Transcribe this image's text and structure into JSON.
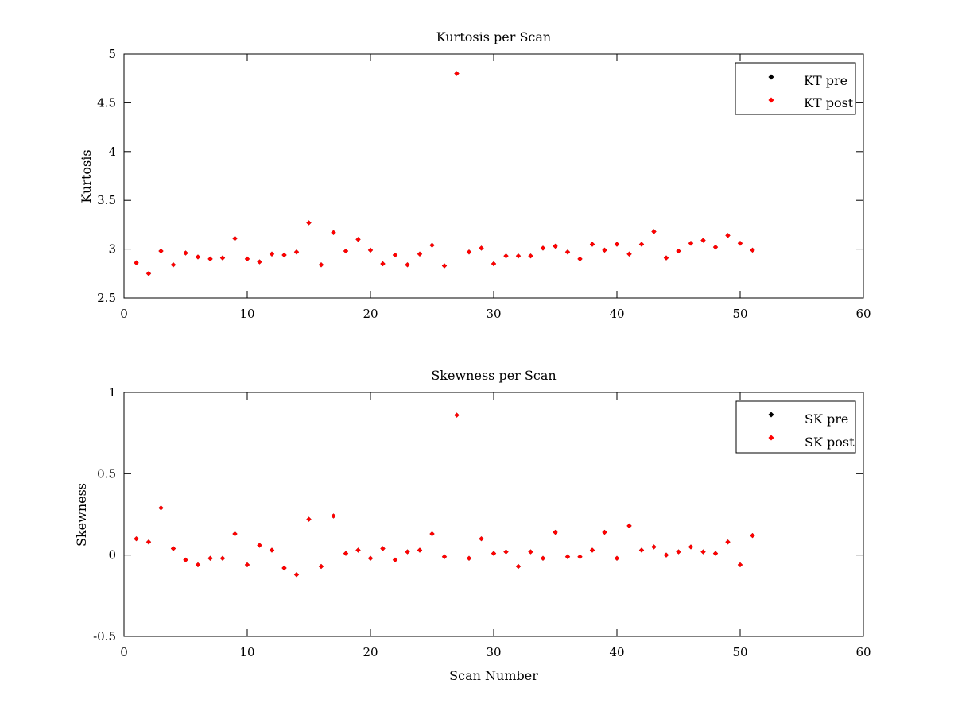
{
  "chart_data": [
    {
      "type": "scatter",
      "title": "Kurtosis per Scan",
      "xlabel": "",
      "ylabel": "Kurtosis",
      "xlim": [
        0,
        60
      ],
      "ylim": [
        2.5,
        5
      ],
      "xticks": [
        0,
        10,
        20,
        30,
        40,
        50,
        60
      ],
      "xtick_labels": [
        "0",
        "10",
        "20",
        "30",
        "40",
        "50",
        "60"
      ],
      "yticks": [
        2.5,
        3,
        3.5,
        4,
        4.5,
        5
      ],
      "ytick_labels": [
        "2.5",
        "3",
        "3.5",
        "4",
        "4.5",
        "5"
      ],
      "grid": false,
      "legend_position": "top-right",
      "series": [
        {
          "name": "KT pre",
          "color": "#000000",
          "x": [
            1,
            2,
            3,
            4,
            5,
            6,
            7,
            8,
            9,
            10,
            11,
            12,
            13,
            14,
            15,
            16,
            17,
            18,
            19,
            20,
            21,
            22,
            23,
            24,
            25,
            26,
            27,
            28,
            29,
            30,
            31,
            32,
            33,
            34,
            35,
            36,
            37,
            38,
            39,
            40,
            41,
            42,
            43,
            44,
            45,
            46,
            47,
            48,
            49,
            50,
            51
          ],
          "y": [
            2.86,
            2.75,
            2.98,
            2.84,
            2.96,
            2.92,
            2.9,
            2.91,
            3.11,
            2.9,
            2.87,
            2.95,
            2.94,
            2.97,
            3.27,
            2.84,
            3.17,
            2.98,
            3.1,
            2.99,
            2.85,
            2.94,
            2.84,
            2.95,
            3.04,
            2.83,
            4.8,
            2.97,
            3.01,
            2.85,
            2.93,
            2.93,
            2.93,
            3.01,
            3.03,
            2.97,
            2.9,
            3.05,
            2.99,
            3.05,
            2.95,
            3.05,
            3.18,
            2.91,
            2.98,
            3.06,
            3.09,
            3.02,
            3.14,
            3.06,
            2.99
          ]
        },
        {
          "name": "KT post",
          "color": "#ff0000",
          "x": [
            1,
            2,
            3,
            4,
            5,
            6,
            7,
            8,
            9,
            10,
            11,
            12,
            13,
            14,
            15,
            16,
            17,
            18,
            19,
            20,
            21,
            22,
            23,
            24,
            25,
            26,
            27,
            28,
            29,
            30,
            31,
            32,
            33,
            34,
            35,
            36,
            37,
            38,
            39,
            40,
            41,
            42,
            43,
            44,
            45,
            46,
            47,
            48,
            49,
            50,
            51
          ],
          "y": [
            2.86,
            2.75,
            2.98,
            2.84,
            2.96,
            2.92,
            2.9,
            2.91,
            3.11,
            2.9,
            2.87,
            2.95,
            2.94,
            2.97,
            3.27,
            2.84,
            3.17,
            2.98,
            3.1,
            2.99,
            2.85,
            2.94,
            2.84,
            2.95,
            3.04,
            2.83,
            4.8,
            2.97,
            3.01,
            2.85,
            2.93,
            2.93,
            2.93,
            3.01,
            3.03,
            2.97,
            2.9,
            3.05,
            2.99,
            3.05,
            2.95,
            3.05,
            3.18,
            2.91,
            2.98,
            3.06,
            3.09,
            3.02,
            3.14,
            3.06,
            2.99
          ]
        }
      ]
    },
    {
      "type": "scatter",
      "title": "Skewness per Scan",
      "xlabel": "Scan Number",
      "ylabel": "Skewness",
      "xlim": [
        0,
        60
      ],
      "ylim": [
        -0.5,
        1
      ],
      "xticks": [
        0,
        10,
        20,
        30,
        40,
        50,
        60
      ],
      "xtick_labels": [
        "0",
        "10",
        "20",
        "30",
        "40",
        "50",
        "60"
      ],
      "yticks": [
        -0.5,
        0,
        0.5,
        1
      ],
      "ytick_labels": [
        "-0.5",
        "0",
        "0.5",
        "1"
      ],
      "grid": false,
      "legend_position": "top-right",
      "series": [
        {
          "name": "SK pre",
          "color": "#000000",
          "x": [
            1,
            2,
            3,
            4,
            5,
            6,
            7,
            8,
            9,
            10,
            11,
            12,
            13,
            14,
            15,
            16,
            17,
            18,
            19,
            20,
            21,
            22,
            23,
            24,
            25,
            26,
            27,
            28,
            29,
            30,
            31,
            32,
            33,
            34,
            35,
            36,
            37,
            38,
            39,
            40,
            41,
            42,
            43,
            44,
            45,
            46,
            47,
            48,
            49,
            50,
            51
          ],
          "y": [
            0.1,
            0.08,
            0.29,
            0.04,
            -0.03,
            -0.06,
            -0.02,
            -0.02,
            0.13,
            -0.06,
            0.06,
            0.03,
            -0.08,
            -0.12,
            0.22,
            -0.07,
            0.24,
            0.01,
            0.03,
            -0.02,
            0.04,
            -0.03,
            0.02,
            0.03,
            0.13,
            -0.01,
            0.86,
            -0.02,
            0.1,
            0.01,
            0.02,
            -0.07,
            0.02,
            -0.02,
            0.14,
            -0.01,
            -0.01,
            0.03,
            0.14,
            -0.02,
            0.18,
            0.03,
            0.05,
            0.0,
            0.02,
            0.05,
            0.02,
            0.01,
            0.08,
            -0.06,
            0.12
          ]
        },
        {
          "name": "SK post",
          "color": "#ff0000",
          "x": [
            1,
            2,
            3,
            4,
            5,
            6,
            7,
            8,
            9,
            10,
            11,
            12,
            13,
            14,
            15,
            16,
            17,
            18,
            19,
            20,
            21,
            22,
            23,
            24,
            25,
            26,
            27,
            28,
            29,
            30,
            31,
            32,
            33,
            34,
            35,
            36,
            37,
            38,
            39,
            40,
            41,
            42,
            43,
            44,
            45,
            46,
            47,
            48,
            49,
            50,
            51
          ],
          "y": [
            0.1,
            0.08,
            0.29,
            0.04,
            -0.03,
            -0.06,
            -0.02,
            -0.02,
            0.13,
            -0.06,
            0.06,
            0.03,
            -0.08,
            -0.12,
            0.22,
            -0.07,
            0.24,
            0.01,
            0.03,
            -0.02,
            0.04,
            -0.03,
            0.02,
            0.03,
            0.13,
            -0.01,
            0.86,
            -0.02,
            0.1,
            0.01,
            0.02,
            -0.07,
            0.02,
            -0.02,
            0.14,
            -0.01,
            -0.01,
            0.03,
            0.14,
            -0.02,
            0.18,
            0.03,
            0.05,
            0.0,
            0.02,
            0.05,
            0.02,
            0.01,
            0.08,
            -0.06,
            0.12
          ]
        }
      ]
    }
  ]
}
